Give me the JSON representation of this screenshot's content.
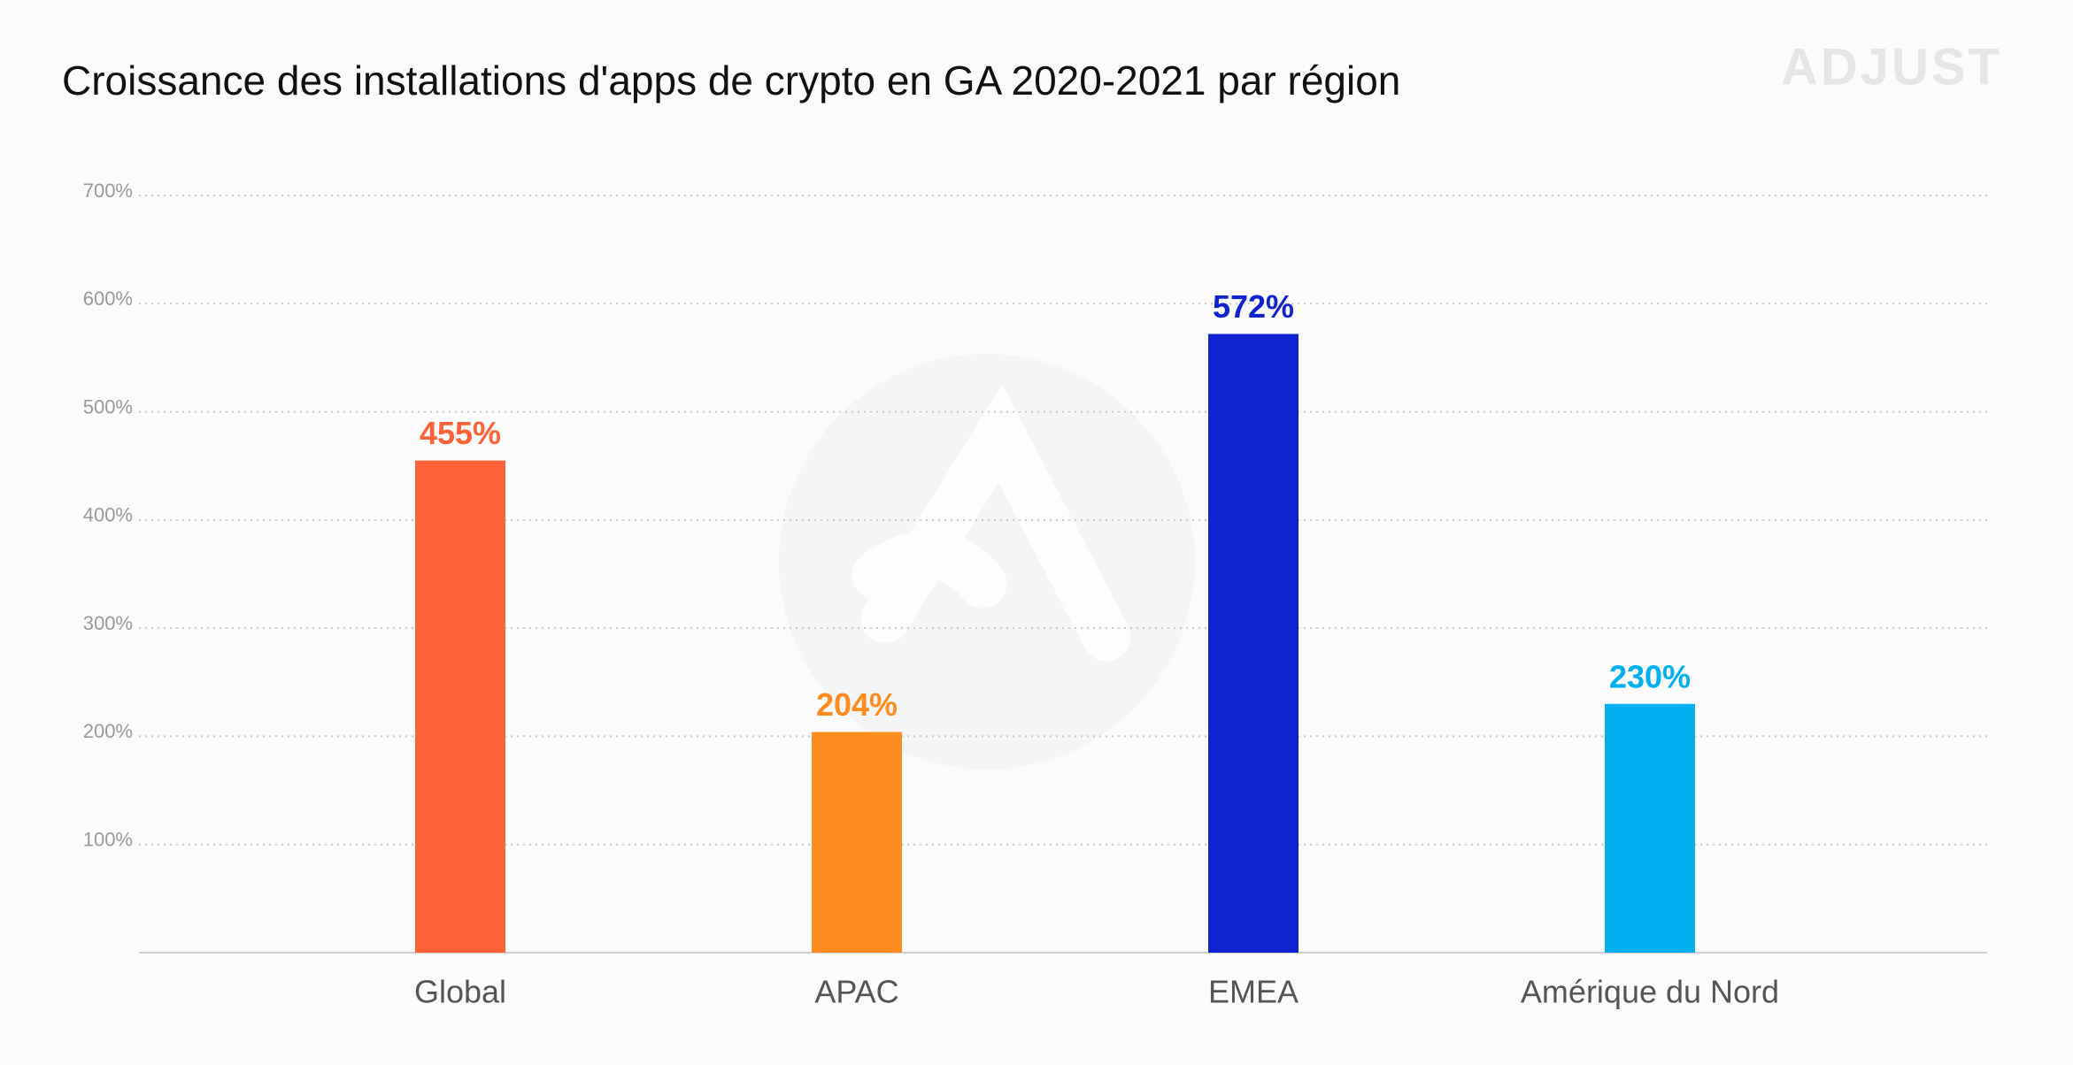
{
  "chart_data": {
    "type": "bar",
    "title": "Croissance des installations d'apps de crypto en GA 2020-2021 par région",
    "brand": "ADJUST",
    "categories": [
      "Global",
      "APAC",
      "EMEA",
      "Amérique du Nord"
    ],
    "values": [
      455,
      204,
      572,
      230
    ],
    "value_labels": [
      "455%",
      "204%",
      "572%",
      "230%"
    ],
    "colors": [
      "#ff6139",
      "#ff8c1e",
      "#1123d1",
      "#00b0f0"
    ],
    "ylim": [
      0,
      700
    ],
    "yticks": [
      {
        "value": 100,
        "label": "100%"
      },
      {
        "value": 200,
        "label": "200%"
      },
      {
        "value": 300,
        "label": "300%"
      },
      {
        "value": 400,
        "label": "400%"
      },
      {
        "value": 500,
        "label": "500%"
      },
      {
        "value": 600,
        "label": "600%"
      },
      {
        "value": 700,
        "label": "700%"
      }
    ],
    "grid": true
  }
}
